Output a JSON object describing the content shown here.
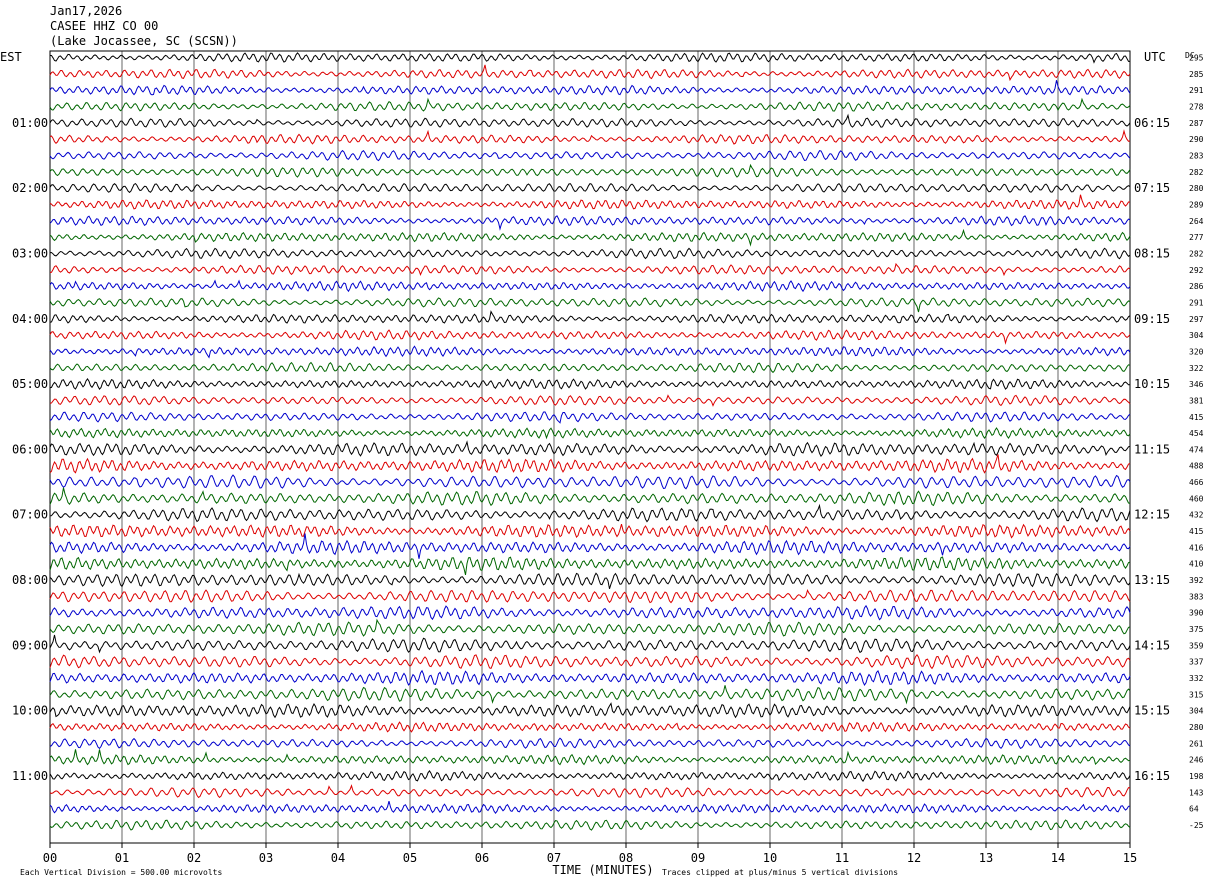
{
  "header": {
    "date": "Jan17,2026",
    "station": "CASEE HHZ CO 00",
    "location": "(Lake Jocassee, SC (SCSN))"
  },
  "chart_data": {
    "type": "line",
    "title": "",
    "xlabel": "TIME (MINUTES)",
    "ylabel_left": "EST",
    "ylabel_right": "UTC",
    "dc_label": "DC",
    "x_ticks": [
      "00",
      "01",
      "02",
      "03",
      "04",
      "05",
      "06",
      "07",
      "08",
      "09",
      "10",
      "11",
      "12",
      "13",
      "14",
      "15"
    ],
    "xlim": [
      0,
      15
    ],
    "left_hour_labels": [
      "01:00",
      "02:00",
      "03:00",
      "04:00",
      "05:00",
      "06:00",
      "07:00",
      "08:00",
      "09:00",
      "10:00",
      "11:00"
    ],
    "right_hour_labels": [
      "06:15",
      "07:15",
      "08:15",
      "09:15",
      "10:15",
      "11:15",
      "12:15",
      "13:15",
      "14:15",
      "15:15",
      "16:15"
    ],
    "trace_colors": [
      "#000000",
      "#dd0000",
      "#0000cc",
      "#006600"
    ],
    "dc_offsets": [
      295,
      285,
      291,
      278,
      287,
      290,
      283,
      282,
      280,
      289,
      264,
      277,
      282,
      292,
      286,
      291,
      297,
      304,
      320,
      322,
      346,
      381,
      415,
      454,
      474,
      488,
      466,
      460,
      432,
      415,
      416,
      410,
      392,
      383,
      390,
      375,
      359,
      337,
      332,
      315,
      304,
      280,
      261,
      246,
      198,
      143,
      64,
      -25
    ],
    "footer_left": "Each Vertical Division =  500.00 microvolts",
    "footer_right": "Traces clipped at plus/minus 5 vertical divisions"
  }
}
